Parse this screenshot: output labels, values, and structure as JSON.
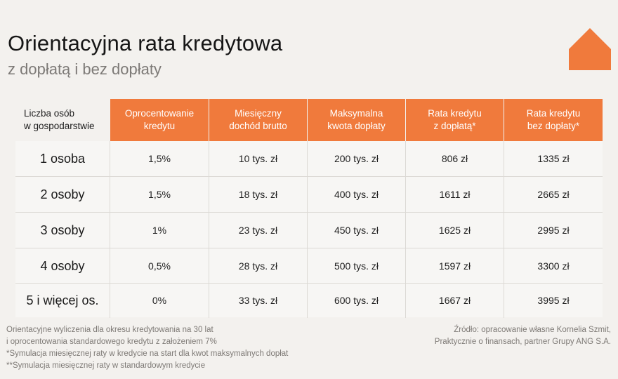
{
  "header": {
    "title": "Orientacyjna rata kredytowa",
    "subtitle": "z dopłatą i bez dopłaty"
  },
  "logo": {
    "icon": "house-icon",
    "color": "#f07a3c"
  },
  "colors": {
    "accent": "#f07a3c",
    "background": "#f3f1ee",
    "row_bg": "#f7f6f4"
  },
  "table": {
    "headers": [
      "Liczba osób\nw gospodarstwie",
      "Oprocentowanie\nkredytu",
      "Miesięczny\ndochód brutto",
      "Maksymalna\nkwota dopłaty",
      "Rata kredytu\nz dopłatą*",
      "Rata kredytu\nbez dopłaty*"
    ],
    "rows": [
      [
        "1 osoba",
        "1,5%",
        "10 tys. zł",
        "200 tys. zł",
        "806 zł",
        "1335 zł"
      ],
      [
        "2 osoby",
        "1,5%",
        "18 tys. zł",
        "400 tys. zł",
        "1611 zł",
        "2665 zł"
      ],
      [
        "3 osoby",
        "1%",
        "23 tys. zł",
        "450 tys. zł",
        "1625 zł",
        "2995 zł"
      ],
      [
        "4 osoby",
        "0,5%",
        "28 tys. zł",
        "500 tys. zł",
        "1597 zł",
        "3300 zł"
      ],
      [
        "5 i więcej os.",
        "0%",
        "33 tys. zł",
        "600 tys. zł",
        "1667 zł",
        "3995 zł"
      ]
    ]
  },
  "footer": {
    "notes": [
      "Orientacyjne wyliczenia dla okresu kredytowania na 30 lat",
      "i oprocentowania standardowego kredytu z założeniem 7%",
      "*Symulacja miesięcznej raty w kredycie na start dla kwot maksymalnych dopłat",
      "**Symulacja miesięcznej raty w standardowym kredycie"
    ],
    "source": [
      "Źródło: opracowanie własne Kornelia Szmit,",
      "Praktycznie o finansach, partner Grupy ANG S.A."
    ]
  }
}
